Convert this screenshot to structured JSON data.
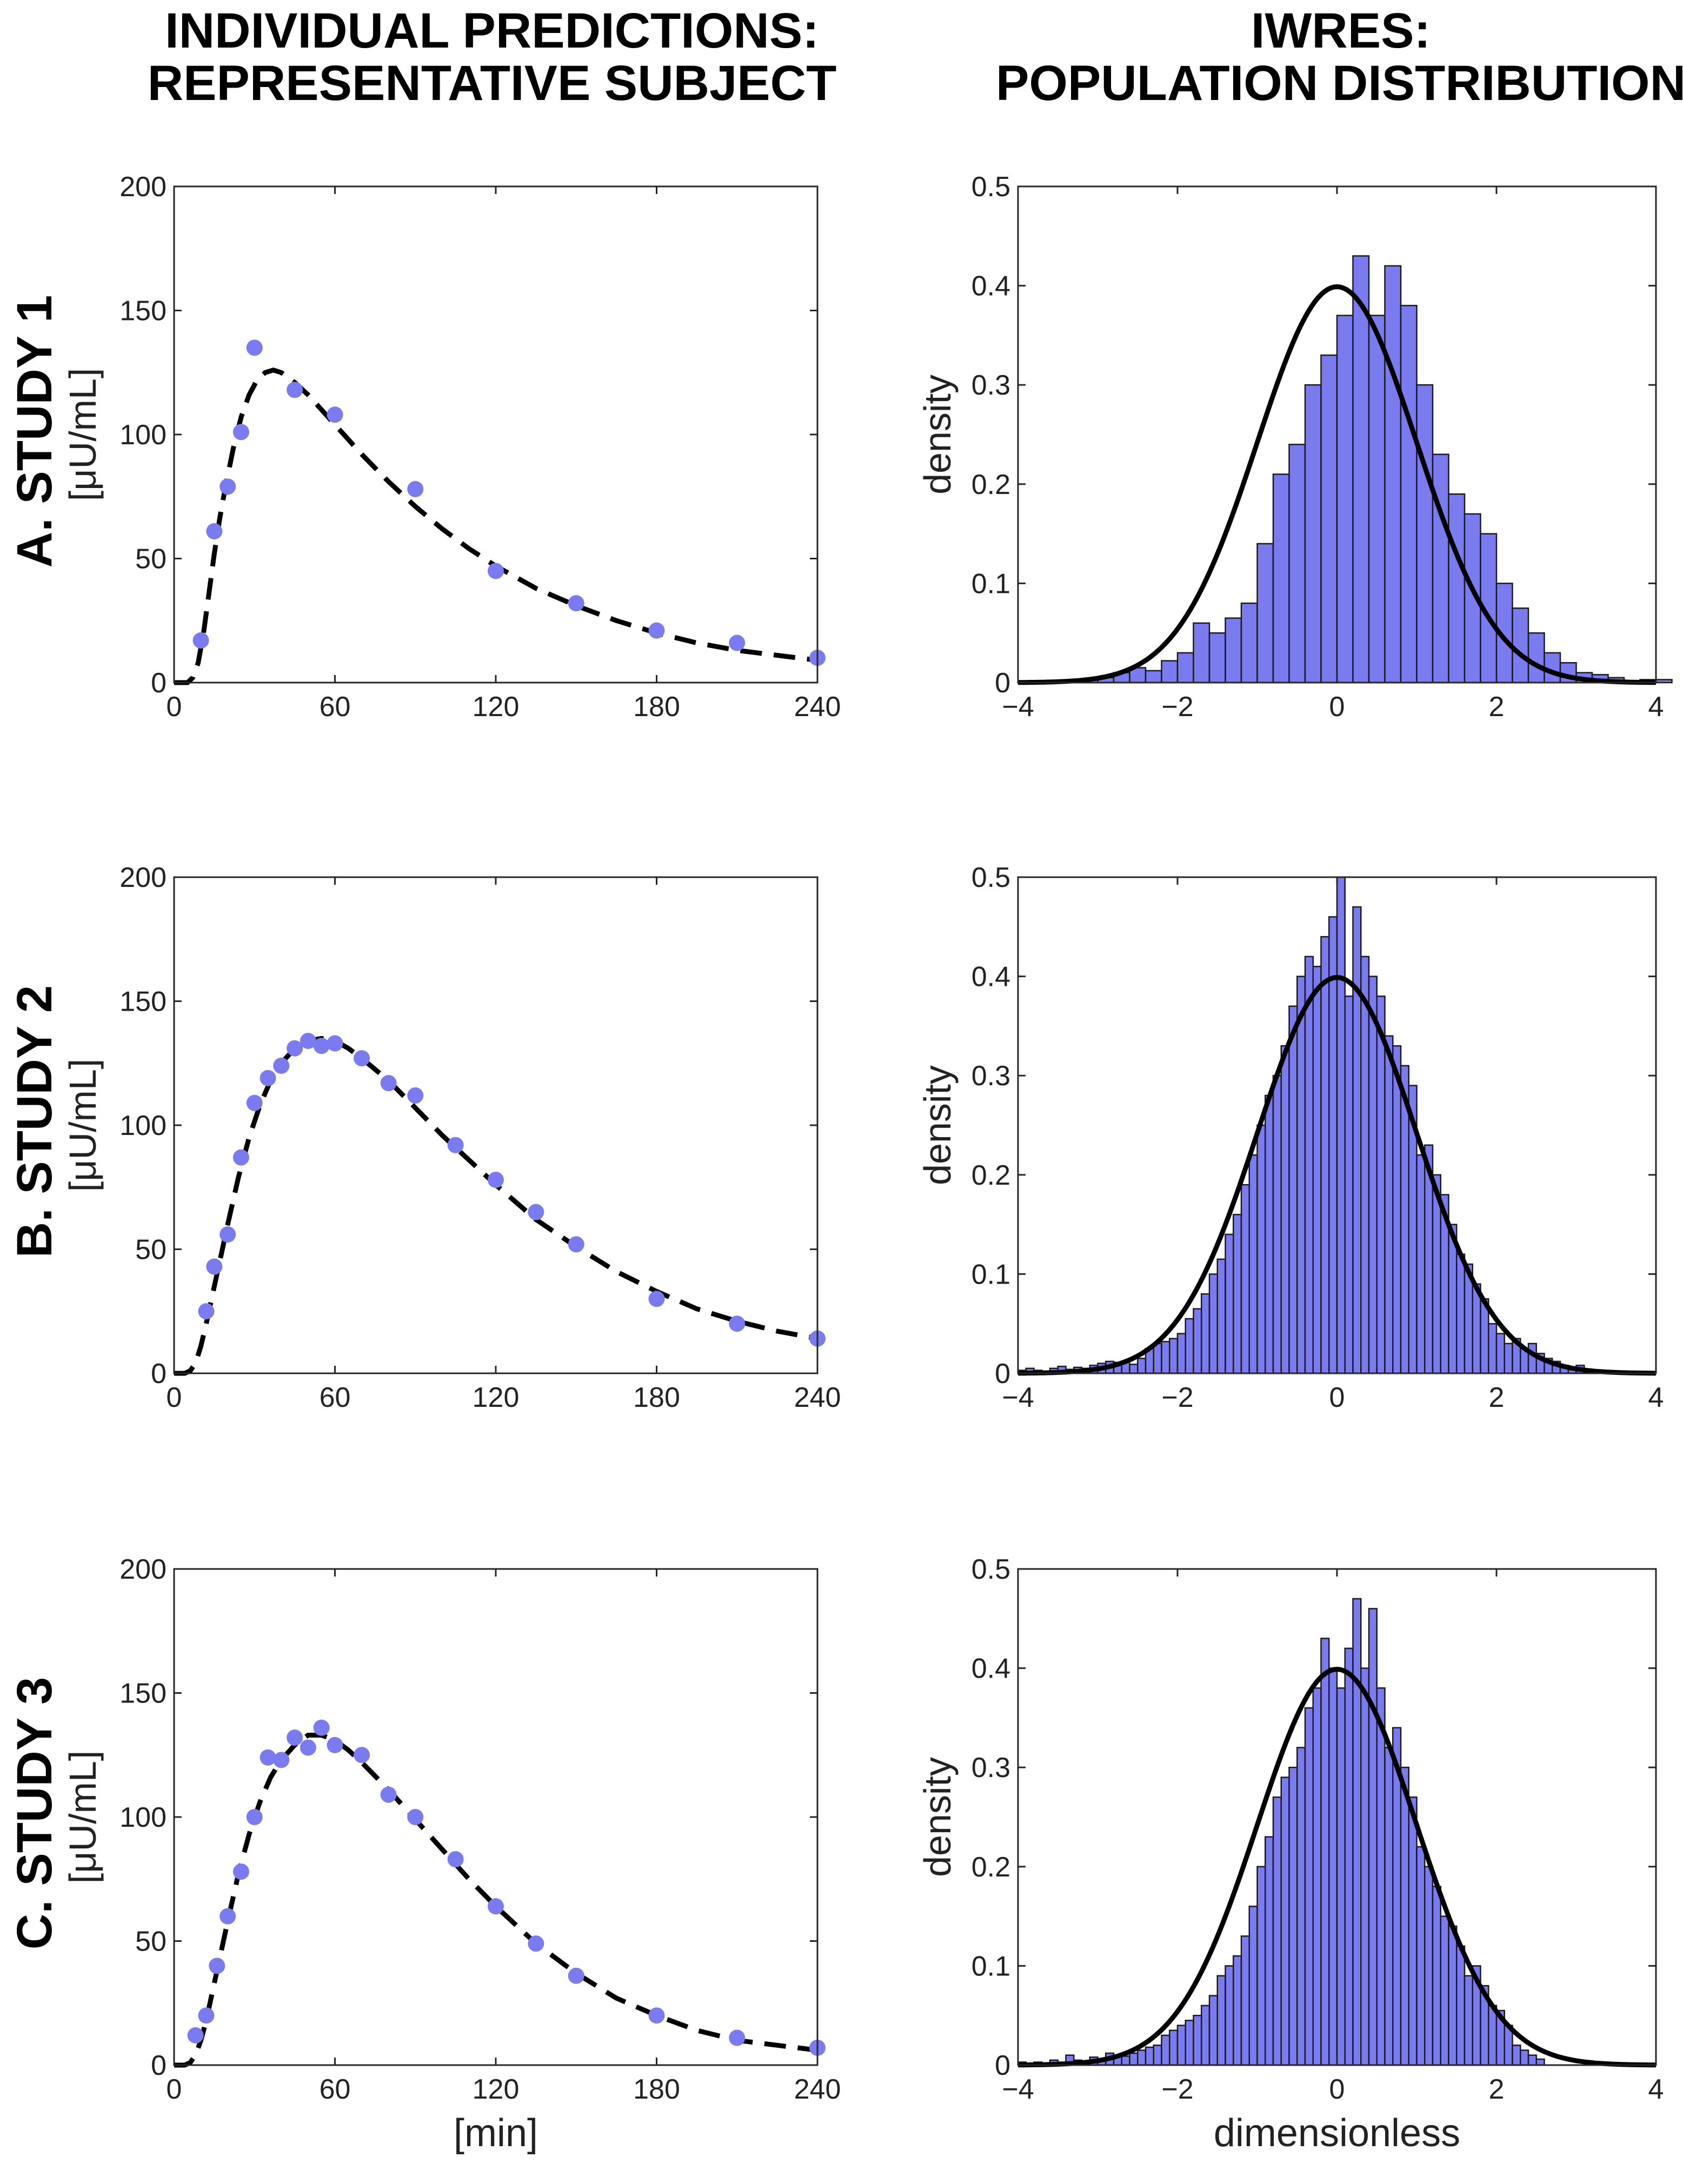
{
  "headers": {
    "left_line1": "INDIVIDUAL PREDICTIONS:",
    "left_line2": "REPRESENTATIVE SUBJECT",
    "right_line1": "IWRES:",
    "right_line2": "POPULATION DISTRIBUTION"
  },
  "rows": [
    {
      "label": "A. STUDY 1"
    },
    {
      "label": "B. STUDY 2"
    },
    {
      "label": "C. STUDY 3"
    }
  ],
  "left_ylabel": "[μU/mL]",
  "left_xlabel": "[min]",
  "right_ylabel": "density",
  "right_xlabel": "dimensionless",
  "colors": {
    "points": "#7b7bf0",
    "bars": "#7b7bf0",
    "bar_edge": "#1a1a1a",
    "curve": "#000000",
    "axis": "#262626"
  },
  "chart_data": [
    {
      "id": "individual-study-1",
      "type": "scatter",
      "xlim": [
        0,
        240
      ],
      "ylim": [
        0,
        200
      ],
      "xticks": [
        "0",
        "60",
        "120",
        "180",
        "240"
      ],
      "yticks": [
        "0",
        "50",
        "100",
        "150",
        "200"
      ],
      "xlabel": "",
      "ylabel": "[μU/mL]",
      "observed": {
        "x": [
          10,
          15,
          20,
          25,
          30,
          45,
          60,
          90,
          120,
          150,
          180,
          210,
          240
        ],
        "y": [
          17,
          61,
          79,
          101,
          135,
          118,
          108,
          78,
          45,
          32,
          21,
          16,
          10
        ]
      },
      "prediction": {
        "x": [
          0,
          5,
          7,
          9,
          11,
          13,
          15,
          17,
          19,
          22,
          25,
          28,
          31,
          34,
          37,
          40,
          45,
          50,
          55,
          60,
          70,
          80,
          90,
          100,
          110,
          120,
          135,
          150,
          165,
          180,
          195,
          210,
          225,
          240
        ],
        "y": [
          0,
          0,
          2,
          8,
          20,
          36,
          52,
          66,
          78,
          94,
          107,
          116,
          122,
          125,
          126,
          125,
          121,
          116,
          110,
          104,
          92,
          81,
          71,
          62,
          54,
          47,
          38,
          31,
          25,
          20,
          16,
          13,
          11,
          9
        ]
      }
    },
    {
      "id": "iwres-study-1",
      "type": "bar",
      "xlim": [
        -4,
        4
      ],
      "ylim": [
        0,
        0.5
      ],
      "xticks": [
        "−4",
        "−2",
        "0",
        "2",
        "4"
      ],
      "yticks": [
        "0",
        "0.1",
        "0.2",
        "0.3",
        "0.4",
        "0.5"
      ],
      "xlabel": "",
      "ylabel": "density",
      "bin_start": -3.2,
      "bin_width": 0.2,
      "values": [
        0.003,
        0.005,
        0.01,
        0.015,
        0.012,
        0.022,
        0.03,
        0.06,
        0.05,
        0.065,
        0.08,
        0.14,
        0.21,
        0.24,
        0.3,
        0.33,
        0.37,
        0.43,
        0.37,
        0.42,
        0.38,
        0.3,
        0.23,
        0.19,
        0.17,
        0.15,
        0.1,
        0.075,
        0.05,
        0.03,
        0.02,
        0.01,
        0.008,
        0.005,
        0.0,
        0.003,
        0.003
      ],
      "curve": "standard normal density"
    },
    {
      "id": "individual-study-2",
      "type": "scatter",
      "xlim": [
        0,
        240
      ],
      "ylim": [
        0,
        200
      ],
      "xticks": [
        "0",
        "60",
        "120",
        "180",
        "240"
      ],
      "yticks": [
        "0",
        "50",
        "100",
        "150",
        "200"
      ],
      "xlabel": "",
      "ylabel": "[μU/mL]",
      "observed": {
        "x": [
          12,
          15,
          20,
          25,
          30,
          35,
          40,
          45,
          50,
          55,
          60,
          70,
          80,
          90,
          105,
          120,
          135,
          150,
          180,
          210,
          240
        ],
        "y": [
          25,
          43,
          56,
          87,
          109,
          119,
          124,
          131,
          134,
          132,
          133,
          127,
          117,
          112,
          92,
          78,
          65,
          52,
          30,
          20,
          14
        ]
      },
      "prediction": {
        "x": [
          0,
          4,
          6,
          8,
          10,
          12,
          14,
          16,
          18,
          20,
          24,
          28,
          32,
          36,
          40,
          45,
          50,
          55,
          60,
          65,
          70,
          80,
          90,
          100,
          110,
          120,
          135,
          150,
          165,
          180,
          195,
          210,
          225,
          240
        ],
        "y": [
          0,
          0,
          1,
          4,
          11,
          20,
          30,
          40,
          50,
          60,
          79,
          95,
          108,
          118,
          125,
          131,
          134,
          135,
          134,
          131,
          127,
          118,
          107,
          96,
          86,
          76,
          62,
          51,
          41,
          33,
          26,
          21,
          17,
          14
        ]
      }
    },
    {
      "id": "iwres-study-2",
      "type": "bar",
      "xlim": [
        -4,
        4
      ],
      "ylim": [
        0,
        0.5
      ],
      "xticks": [
        "−4",
        "−2",
        "0",
        "2",
        "4"
      ],
      "yticks": [
        "0",
        "0.1",
        "0.2",
        "0.3",
        "0.4",
        "0.5"
      ],
      "xlabel": "",
      "ylabel": "density",
      "bin_start": -4.0,
      "bin_width": 0.1,
      "values": [
        0.003,
        0.005,
        0.003,
        0.002,
        0.005,
        0.007,
        0.004,
        0.006,
        0.005,
        0.008,
        0.01,
        0.012,
        0.011,
        0.012,
        0.009,
        0.015,
        0.025,
        0.03,
        0.032,
        0.035,
        0.04,
        0.055,
        0.065,
        0.08,
        0.1,
        0.115,
        0.14,
        0.16,
        0.19,
        0.22,
        0.25,
        0.28,
        0.3,
        0.33,
        0.37,
        0.4,
        0.42,
        0.41,
        0.44,
        0.46,
        0.5,
        0.38,
        0.47,
        0.42,
        0.4,
        0.38,
        0.34,
        0.33,
        0.31,
        0.29,
        0.22,
        0.23,
        0.2,
        0.18,
        0.15,
        0.12,
        0.11,
        0.09,
        0.075,
        0.05,
        0.04,
        0.03,
        0.035,
        0.025,
        0.03,
        0.02,
        0.015,
        0.012,
        0.008,
        0.005,
        0.008,
        0.0,
        0.0,
        0.0,
        0.0,
        0.0,
        0.0,
        0.0,
        0.0,
        0.0
      ],
      "curve": "standard normal density"
    },
    {
      "id": "individual-study-3",
      "type": "scatter",
      "xlim": [
        0,
        240
      ],
      "ylim": [
        0,
        200
      ],
      "xticks": [
        "0",
        "60",
        "120",
        "180",
        "240"
      ],
      "yticks": [
        "0",
        "50",
        "100",
        "150",
        "200"
      ],
      "xlabel": "[min]",
      "ylabel": "[μU/mL]",
      "observed": {
        "x": [
          8,
          12,
          16,
          20,
          25,
          30,
          35,
          40,
          45,
          50,
          55,
          60,
          70,
          80,
          90,
          105,
          120,
          135,
          150,
          180,
          210,
          240
        ],
        "y": [
          12,
          20,
          40,
          60,
          78,
          100,
          124,
          123,
          132,
          128,
          136,
          129,
          125,
          109,
          100,
          83,
          64,
          49,
          36,
          20,
          11,
          7
        ]
      },
      "prediction": {
        "x": [
          0,
          4,
          6,
          8,
          10,
          12,
          14,
          16,
          18,
          20,
          24,
          28,
          32,
          36,
          40,
          45,
          50,
          55,
          60,
          65,
          70,
          80,
          90,
          100,
          110,
          120,
          135,
          150,
          165,
          180,
          195,
          210,
          225,
          240
        ],
        "y": [
          0,
          0,
          1,
          4,
          10,
          18,
          28,
          38,
          48,
          58,
          77,
          93,
          106,
          116,
          123,
          129,
          133,
          133,
          131,
          127,
          122,
          111,
          99,
          87,
          75,
          64,
          49,
          37,
          27,
          20,
          14,
          10,
          8,
          6
        ]
      }
    },
    {
      "id": "iwres-study-3",
      "type": "bar",
      "xlim": [
        -4,
        4
      ],
      "ylim": [
        0,
        0.5
      ],
      "xticks": [
        "−4",
        "−2",
        "0",
        "2",
        "4"
      ],
      "yticks": [
        "0",
        "0.1",
        "0.2",
        "0.3",
        "0.4",
        "0.5"
      ],
      "xlabel": "dimensionless",
      "ylabel": "density",
      "bin_start": -4.0,
      "bin_width": 0.1,
      "values": [
        0.003,
        0.0,
        0.003,
        0.0,
        0.005,
        0.003,
        0.01,
        0.005,
        0.003,
        0.008,
        0.006,
        0.012,
        0.01,
        0.009,
        0.012,
        0.015,
        0.018,
        0.02,
        0.03,
        0.035,
        0.04,
        0.045,
        0.05,
        0.06,
        0.07,
        0.09,
        0.1,
        0.11,
        0.13,
        0.16,
        0.2,
        0.23,
        0.27,
        0.29,
        0.3,
        0.32,
        0.36,
        0.38,
        0.43,
        0.4,
        0.38,
        0.42,
        0.47,
        0.4,
        0.46,
        0.38,
        0.32,
        0.34,
        0.3,
        0.27,
        0.22,
        0.2,
        0.18,
        0.15,
        0.14,
        0.12,
        0.09,
        0.1,
        0.08,
        0.06,
        0.055,
        0.04,
        0.02,
        0.015,
        0.01,
        0.006,
        0.0,
        0.0,
        0.0,
        0.0,
        0.0,
        0.0,
        0.0,
        0.0,
        0.0,
        0.0,
        0.0,
        0.0,
        0.0,
        0.0
      ],
      "curve": "standard normal density"
    }
  ]
}
